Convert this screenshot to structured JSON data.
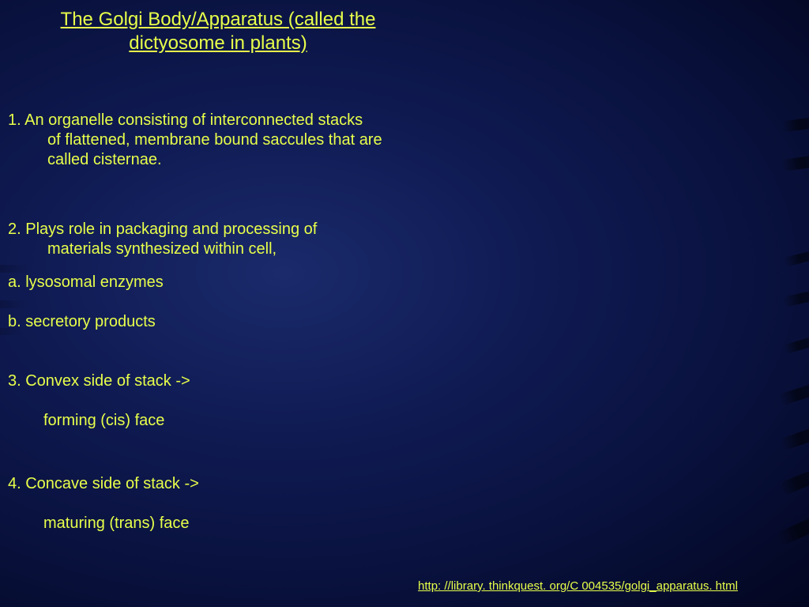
{
  "title_line1": "The Golgi Body/Apparatus (called the",
  "title_line2": "dictyosome in plants)",
  "item1_first": "1. An organelle consisting of interconnected stacks",
  "item1_rest": "of flattened, membrane bound saccules that are called cisternae.",
  "item2_first": "2. Plays role in packaging and processing of",
  "item2_rest": "materials synthesized within cell,",
  "item2a": "a. lysosomal enzymes",
  "item2b": "b. secretory products",
  "item3": "3. Convex side of stack ->",
  "item3sub": "forming (cis) face",
  "item4": "4. Concave side of stack ->",
  "item4sub": "maturing (trans) face",
  "link": "http: //library. thinkquest. org/C 004535/golgi_apparatus. html",
  "colors": {
    "text": "#e8ff4a",
    "bg_center": "#1a2a6b",
    "bg_edge": "#030620"
  },
  "fontsize": {
    "title": 24,
    "body": 20,
    "link": 15
  }
}
